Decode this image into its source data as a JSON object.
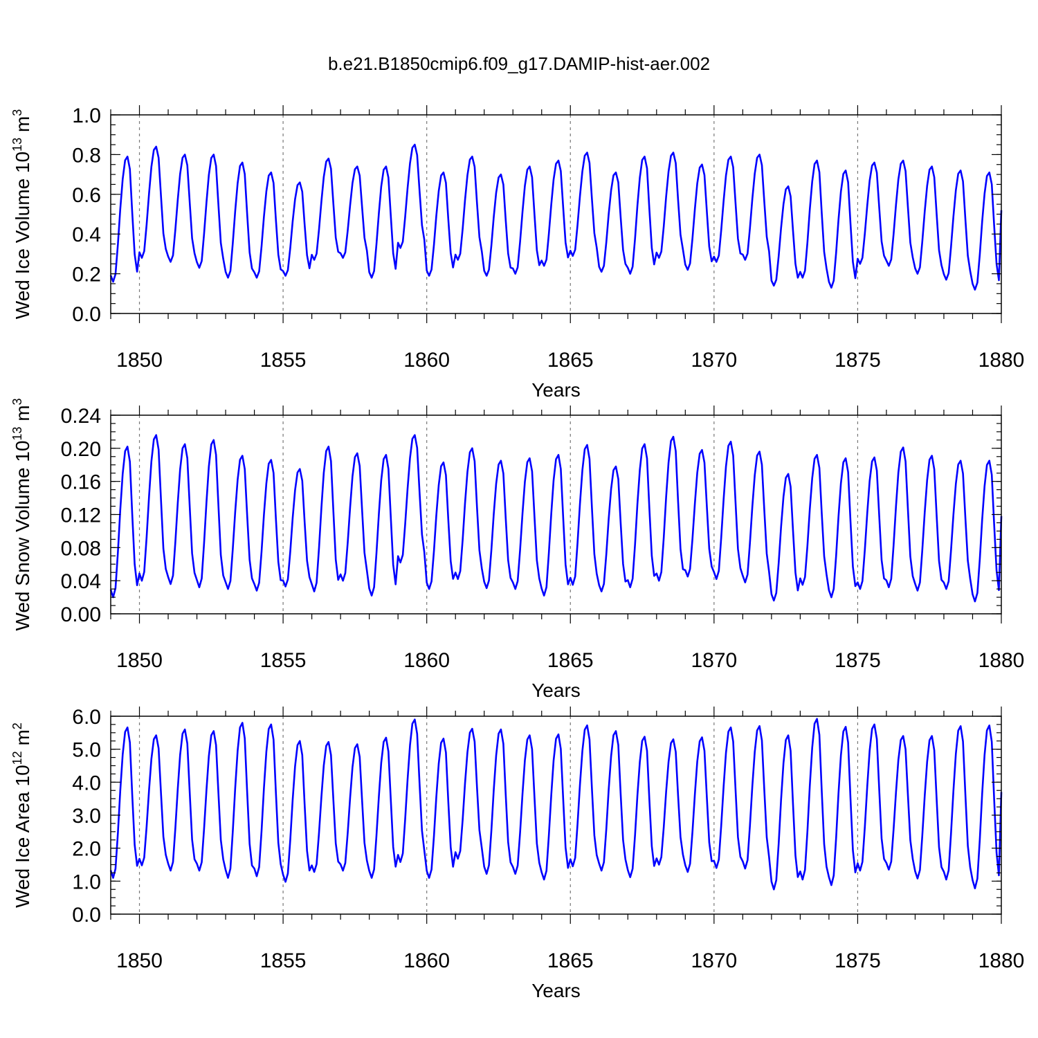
{
  "title": "b.e21.B1850cmip6.f09_g17.DAMIP-hist-aer.002",
  "colors": {
    "series": "#0000ff",
    "grid": "#777777",
    "frame": "#000000"
  },
  "chart_data": [
    {
      "type": "line",
      "ylabel_main": "Wed Ice Volume 10",
      "ylabel_exp": "13",
      "ylabel_unit": " m",
      "ylabel_unit_exp": "3",
      "xlabel": "Years",
      "xlim": [
        1849,
        1880
      ],
      "ylim": [
        0,
        1.0
      ],
      "y_ticks": [
        "0.0",
        "0.2",
        "0.4",
        "0.6",
        "0.8",
        "1.0"
      ],
      "y_minor_step": 0.05,
      "x_ticks": [
        "1850",
        "1855",
        "1860",
        "1865",
        "1870",
        "1875",
        "1880"
      ],
      "grid_x": [
        1850,
        1855,
        1860,
        1865,
        1870,
        1875
      ],
      "start_year": 1849,
      "series": [
        {
          "name": "Wed Ice Volume",
          "annual_min": [
            0.16,
            0.28,
            0.26,
            0.23,
            0.18,
            0.18,
            0.19,
            0.27,
            0.28,
            0.18,
            0.33,
            0.19,
            0.27,
            0.19,
            0.2,
            0.24,
            0.29,
            0.21,
            0.2,
            0.28,
            0.22,
            0.26,
            0.27,
            0.14,
            0.18,
            0.13,
            0.25,
            0.24,
            0.2,
            0.17,
            0.12
          ],
          "annual_max": [
            0.79,
            0.84,
            0.8,
            0.8,
            0.76,
            0.71,
            0.66,
            0.78,
            0.74,
            0.74,
            0.85,
            0.71,
            0.79,
            0.7,
            0.74,
            0.77,
            0.81,
            0.71,
            0.79,
            0.81,
            0.75,
            0.79,
            0.8,
            0.64,
            0.77,
            0.72,
            0.76,
            0.77,
            0.74,
            0.72,
            0.71
          ],
          "end_value": 0.52
        }
      ]
    },
    {
      "type": "line",
      "ylabel_main": "Wed Snow Volume 10",
      "ylabel_exp": "13",
      "ylabel_unit": " m",
      "ylabel_unit_exp": "3",
      "xlabel": "Years",
      "xlim": [
        1849,
        1880
      ],
      "ylim": [
        0,
        0.24
      ],
      "y_ticks": [
        "0.00",
        "0.04",
        "0.08",
        "0.12",
        "0.16",
        "0.20",
        "0.24"
      ],
      "y_minor_step": 0.01,
      "x_ticks": [
        "1850",
        "1855",
        "1860",
        "1865",
        "1870",
        "1875",
        "1880"
      ],
      "grid_x": [
        1850,
        1855,
        1860,
        1865,
        1870,
        1875
      ],
      "start_year": 1849,
      "series": [
        {
          "name": "Wed Snow Volume",
          "annual_min": [
            0.02,
            0.04,
            0.036,
            0.032,
            0.03,
            0.028,
            0.033,
            0.027,
            0.04,
            0.022,
            0.062,
            0.03,
            0.042,
            0.031,
            0.03,
            0.022,
            0.035,
            0.027,
            0.032,
            0.04,
            0.045,
            0.042,
            0.038,
            0.016,
            0.035,
            0.02,
            0.03,
            0.032,
            0.028,
            0.03,
            0.015
          ],
          "annual_max": [
            0.202,
            0.216,
            0.205,
            0.21,
            0.191,
            0.186,
            0.175,
            0.202,
            0.194,
            0.192,
            0.216,
            0.183,
            0.2,
            0.185,
            0.188,
            0.192,
            0.204,
            0.178,
            0.205,
            0.214,
            0.198,
            0.208,
            0.196,
            0.169,
            0.192,
            0.188,
            0.189,
            0.201,
            0.191,
            0.185,
            0.185
          ],
          "end_value": 0.118
        }
      ]
    },
    {
      "type": "line",
      "ylabel_main": "Wed Ice Area 10",
      "ylabel_exp": "12",
      "ylabel_unit": " m",
      "ylabel_unit_exp": "2",
      "xlabel": "Years",
      "xlim": [
        1849,
        1880
      ],
      "ylim": [
        0,
        6.0
      ],
      "y_ticks": [
        "0.0",
        "1.0",
        "2.0",
        "3.0",
        "4.0",
        "5.0",
        "6.0"
      ],
      "y_minor_step": 0.25,
      "x_ticks": [
        "1850",
        "1855",
        "1860",
        "1865",
        "1870",
        "1875",
        "1880"
      ],
      "grid_x": [
        1850,
        1855,
        1860,
        1865,
        1870,
        1875
      ],
      "start_year": 1849,
      "series": [
        {
          "name": "Wed Ice Area",
          "annual_min": [
            1.1,
            1.48,
            1.32,
            1.32,
            1.1,
            1.15,
            0.98,
            1.28,
            1.32,
            1.1,
            1.58,
            1.1,
            1.68,
            1.22,
            1.22,
            1.05,
            1.45,
            1.32,
            1.12,
            1.5,
            1.28,
            1.4,
            1.38,
            0.75,
            1.05,
            0.88,
            1.32,
            1.35,
            1.08,
            1.05,
            0.78
          ],
          "annual_max": [
            5.66,
            5.42,
            5.6,
            5.55,
            5.8,
            5.75,
            5.25,
            5.22,
            5.15,
            5.35,
            5.9,
            5.32,
            5.62,
            5.6,
            5.42,
            5.45,
            5.72,
            5.55,
            5.38,
            5.3,
            5.36,
            5.66,
            5.7,
            5.42,
            5.92,
            5.68,
            5.75,
            5.4,
            5.4,
            5.7,
            5.72
          ],
          "end_value": 3.7
        }
      ]
    }
  ]
}
